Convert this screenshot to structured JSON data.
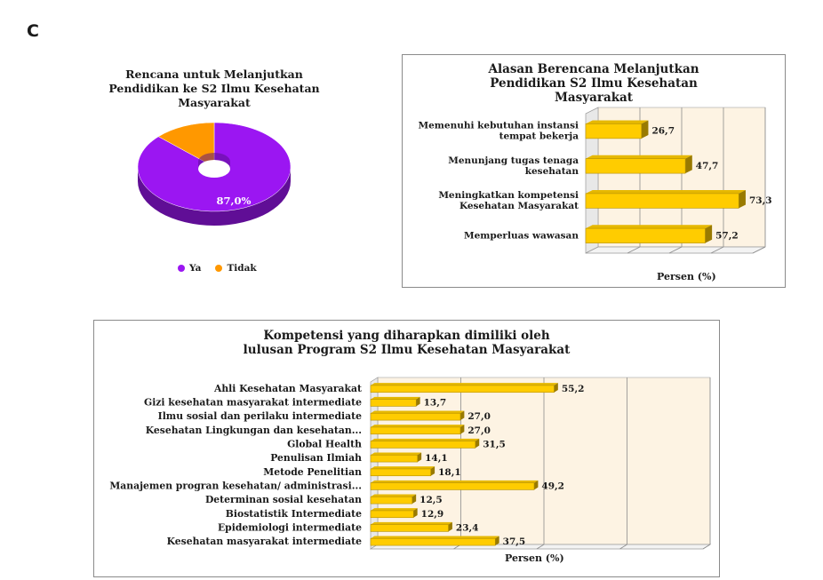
{
  "panel_label": "C",
  "chart_data": [
    {
      "type": "pie",
      "title": "Rencana untuk Melanjutkan Pendidikan ke S2 Ilmu Kesehatan Masyarakat",
      "categories": [
        "Ya",
        "Tidak"
      ],
      "values": [
        87.0,
        13.0
      ],
      "data_labels": [
        "87,0%"
      ],
      "colors": [
        "#9b16f2",
        "#ff9800"
      ],
      "legend_position": "bottom"
    },
    {
      "type": "bar",
      "orientation": "horizontal",
      "title": "Alasan Berencana Melanjutkan Pendidikan S2 Ilmu Kesehatan Masyarakat",
      "categories": [
        "Memenuhi kebutuhan instansi tempat bekerja",
        "Menunjang tugas tenaga kesehatan",
        "Meningkatkan kompetensi Kesehatan Masyarakat",
        "Memperluas wawasan"
      ],
      "values": [
        26.7,
        47.7,
        73.3,
        57.2
      ],
      "data_labels": [
        "26,7",
        "47,7",
        "73,3",
        "57,2"
      ],
      "xlabel": "Persen (%)",
      "xlim": [
        0,
        80
      ],
      "grid": true,
      "bar_color": "#ffcc00"
    },
    {
      "type": "bar",
      "orientation": "horizontal",
      "title": "Kompetensi yang  diharapkan dimiliki oleh lulusan Program S2 Ilmu Kesehatan Masyarakat",
      "categories": [
        "Ahli Kesehatan Masyarakat",
        "Gizi kesehatan masyarakat intermediate",
        "Ilmu sosial dan perilaku intermediate",
        "Kesehatan Lingkungan dan kesehatan...",
        "Global Health",
        "Penulisan Ilmiah",
        "Metode Penelitian",
        "Manajemen progran kesehatan/ administrasi...",
        "Determinan sosial kesehatan",
        "Biostatistik Intermediate",
        "Epidemiologi intermediate",
        "Kesehatan masyarakat intermediate"
      ],
      "values": [
        55.2,
        13.7,
        27.0,
        27.0,
        31.5,
        14.1,
        18.1,
        49.2,
        12.5,
        12.9,
        23.4,
        37.5
      ],
      "data_labels": [
        "55,2",
        "13,7",
        "27,0",
        "27,0",
        "31,5",
        "14,1",
        "18,1",
        "49,2",
        "12,5",
        "12,9",
        "23,4",
        "37,5"
      ],
      "xlabel": "Persen (%)",
      "xlim": [
        0,
        100
      ],
      "grid": true,
      "bar_color": "#ffcc00"
    }
  ]
}
